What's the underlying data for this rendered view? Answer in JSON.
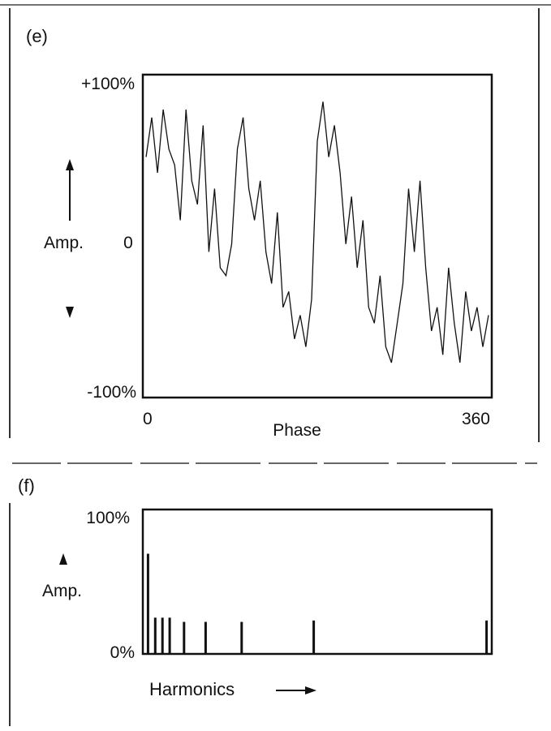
{
  "panels": {
    "e": {
      "label": "(e)",
      "y_top": "+100%",
      "y_mid": "0",
      "y_bottom": "-100%",
      "y_axis_name": "Amp.",
      "x_start": "0",
      "x_end": "360",
      "x_axis_name": "Phase"
    },
    "f": {
      "label": "(f)",
      "y_top": "100%",
      "y_axis_name": "Amp.",
      "y_bottom": "0%",
      "x_axis_name": "Harmonics"
    }
  },
  "chart_data": [
    {
      "type": "line",
      "xlabel": "Phase",
      "ylabel": "Amp.",
      "xlim": [
        0,
        360
      ],
      "ylim": [
        -100,
        100
      ],
      "grid": false,
      "series": [
        {
          "x": [
            0,
            6,
            12,
            18,
            24,
            30,
            36,
            42,
            48,
            54,
            60,
            66,
            72,
            78,
            84,
            90,
            96,
            102,
            108,
            114,
            120,
            126,
            132,
            138,
            144,
            150,
            156,
            162,
            168,
            174,
            180,
            186,
            192,
            198,
            204,
            210,
            216,
            222,
            228,
            234,
            240,
            246,
            252,
            258,
            264,
            270,
            276,
            282,
            288,
            294,
            300,
            306,
            312,
            318,
            324,
            330,
            336,
            342,
            348,
            354,
            360
          ],
          "y": [
            50,
            75,
            40,
            80,
            55,
            45,
            10,
            80,
            35,
            20,
            70,
            -10,
            30,
            -20,
            -25,
            -5,
            55,
            75,
            30,
            10,
            35,
            -10,
            -30,
            15,
            -45,
            -35,
            -65,
            -50,
            -70,
            -40,
            60,
            85,
            50,
            70,
            40,
            -5,
            25,
            -20,
            10,
            -45,
            -55,
            -25,
            -70,
            -80,
            -55,
            -30,
            30,
            -10,
            35,
            -20,
            -60,
            -45,
            -75,
            -20,
            -55,
            -80,
            -35,
            -60,
            -45,
            -70,
            -50
          ]
        }
      ]
    },
    {
      "type": "bar",
      "xlabel": "Harmonics",
      "ylabel": "Amp.",
      "ylim": [
        0,
        100
      ],
      "grid": false,
      "series": [
        {
          "x": [
            1,
            2,
            3,
            4,
            6,
            9,
            14,
            24,
            48
          ],
          "values": [
            70,
            25,
            25,
            25,
            22,
            22,
            22,
            23,
            23
          ]
        }
      ]
    }
  ]
}
